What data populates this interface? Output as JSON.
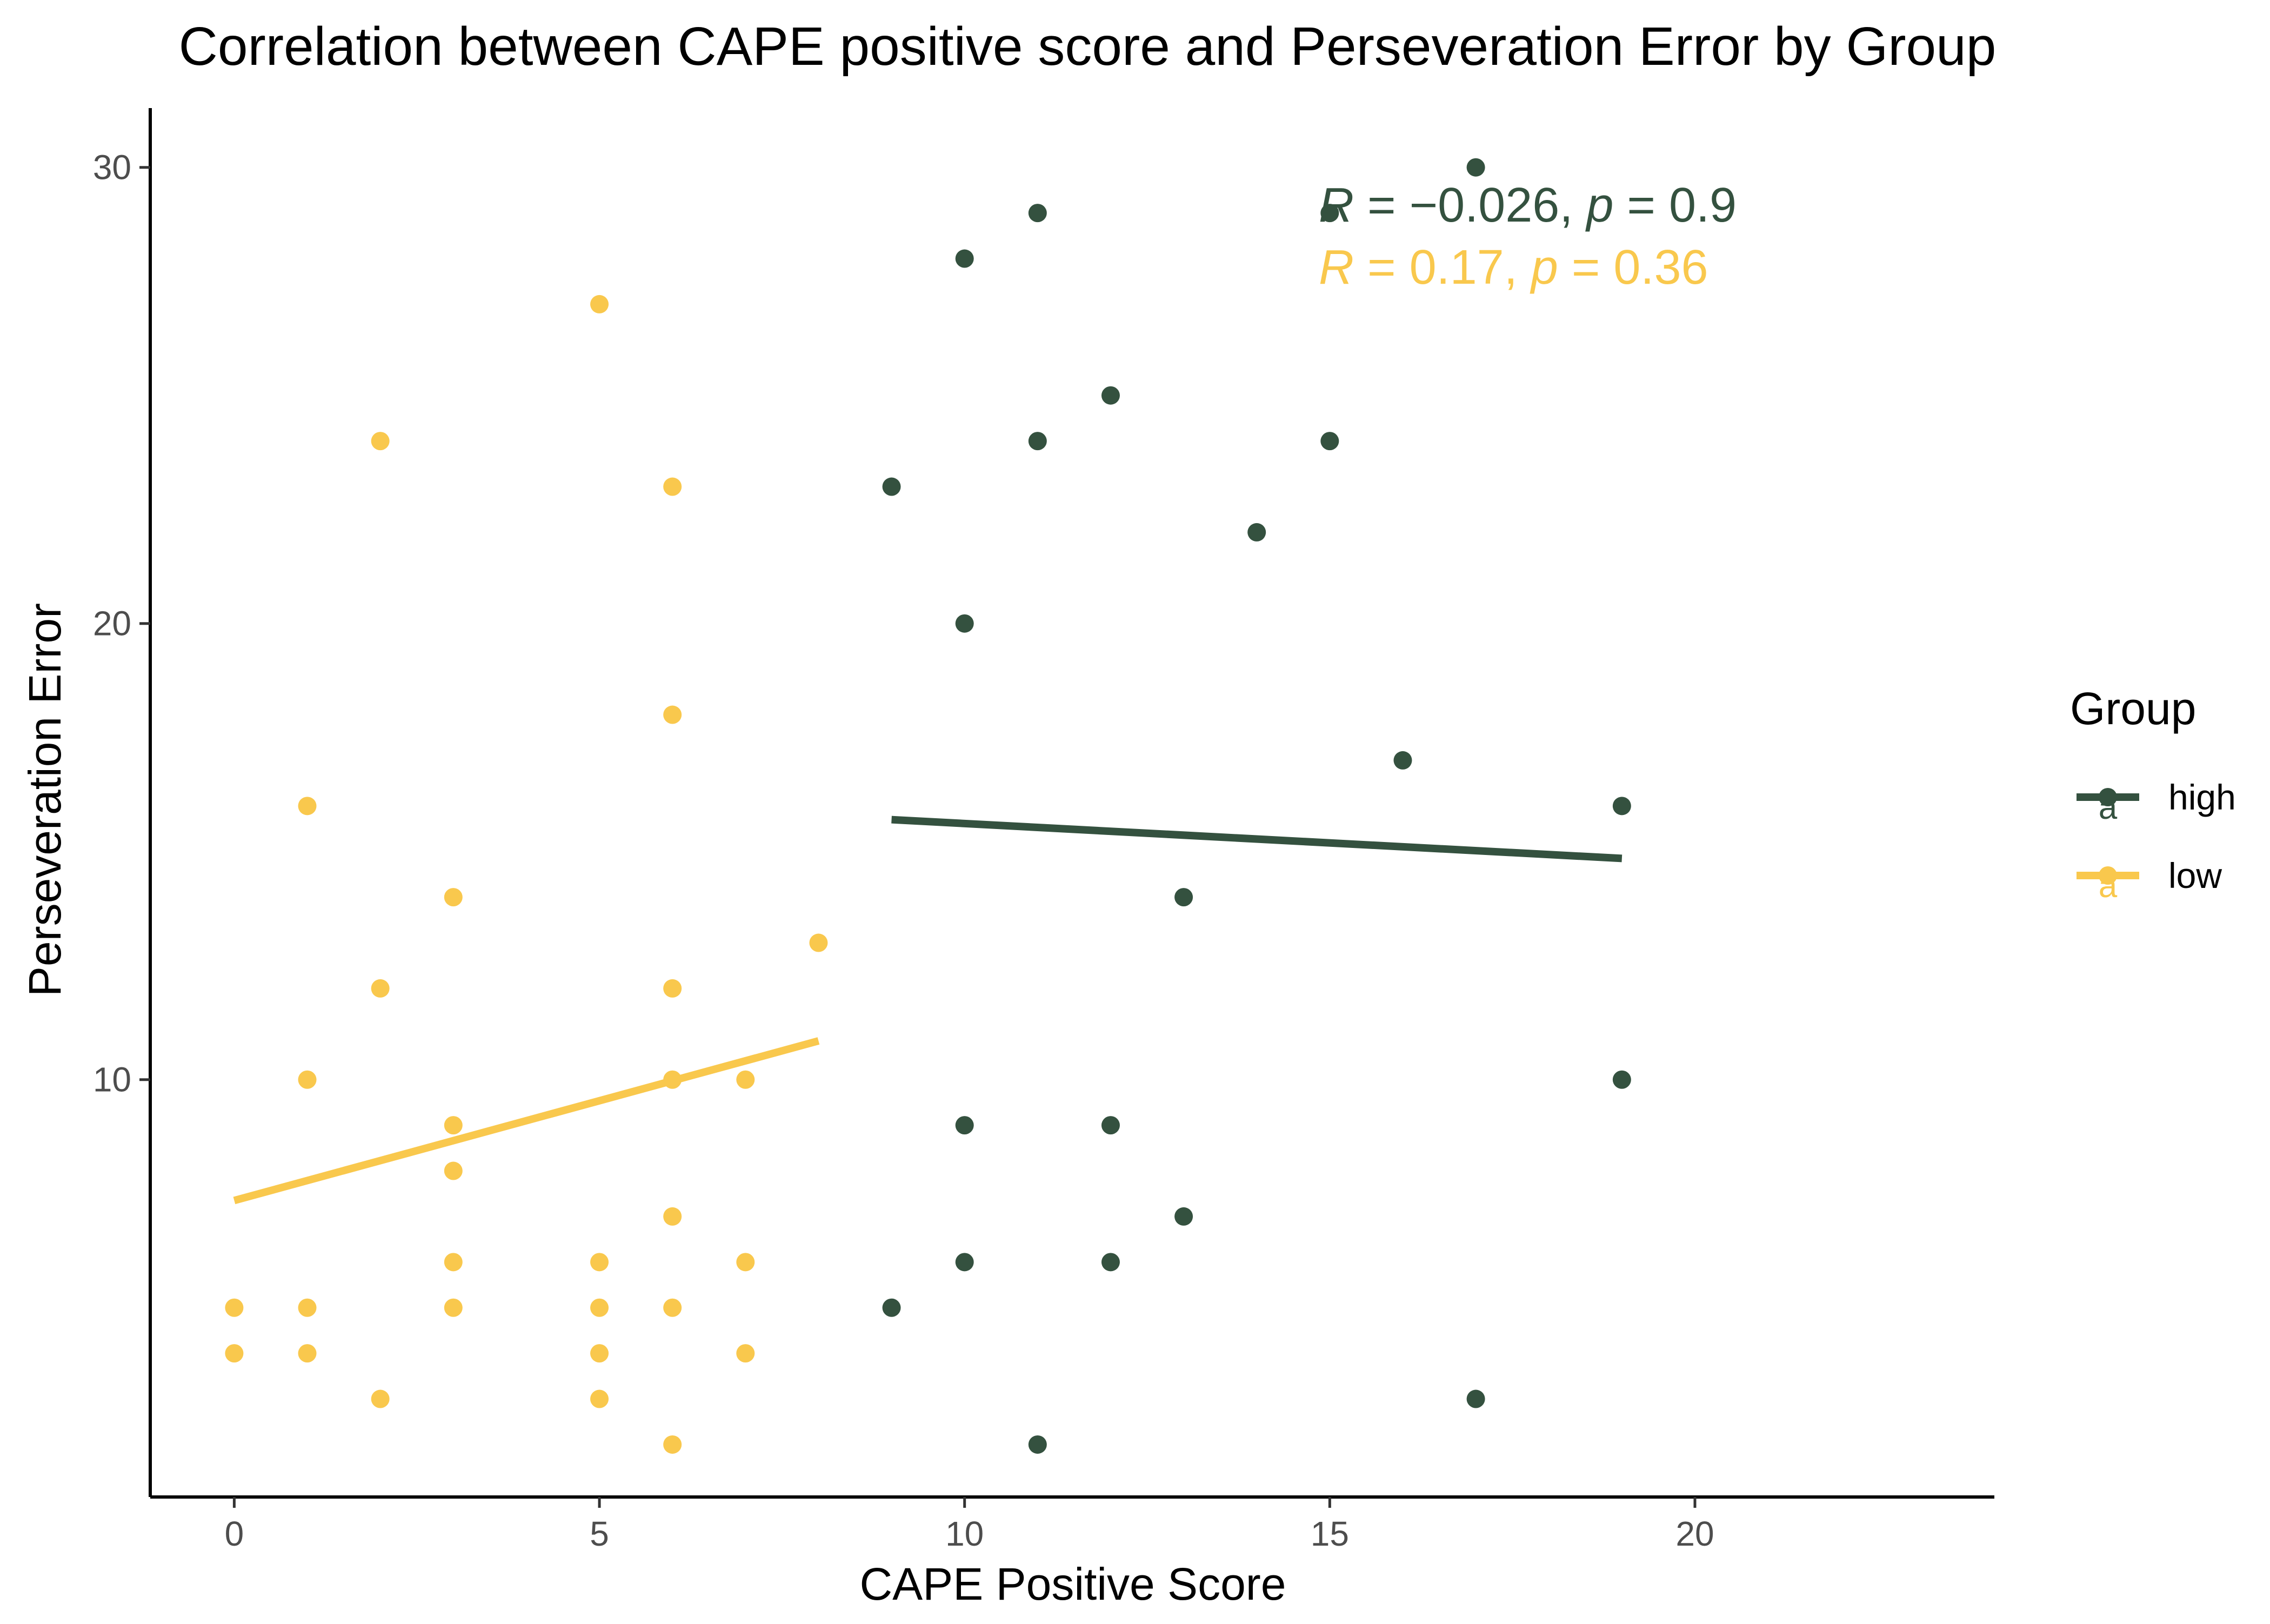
{
  "chart_data": {
    "type": "scatter",
    "title": "Correlation between CAPE positive score and Perseveration Error by Group",
    "xlabel": "CAPE Positive Score",
    "ylabel": "Perseveration Error",
    "xlim": [
      -1.15,
      24.1
    ],
    "ylim": [
      0.85,
      31.3
    ],
    "xticks": [
      "0",
      "5",
      "10",
      "15",
      "20"
    ],
    "yticks": [
      "10",
      "20",
      "30"
    ],
    "grid": false,
    "legend": {
      "title": "Group",
      "placement": "right",
      "key_glyph": "a"
    },
    "series": [
      {
        "name": "high",
        "color": "#34513f",
        "points": [
          [
            9,
            23
          ],
          [
            9,
            5
          ],
          [
            10,
            28
          ],
          [
            10,
            20
          ],
          [
            10,
            9
          ],
          [
            10,
            6
          ],
          [
            11,
            29
          ],
          [
            11,
            24
          ],
          [
            11,
            2
          ],
          [
            12,
            25
          ],
          [
            12,
            9
          ],
          [
            12,
            6
          ],
          [
            13,
            14
          ],
          [
            13,
            7
          ],
          [
            14,
            22
          ],
          [
            15,
            29
          ],
          [
            15,
            24
          ],
          [
            16,
            17
          ],
          [
            17,
            30
          ],
          [
            17,
            3
          ],
          [
            19,
            16
          ],
          [
            19,
            10
          ]
        ],
        "fit_line": {
          "x": [
            9,
            19
          ],
          "y": [
            15.7,
            14.85
          ]
        },
        "annotation": {
          "R": "R",
          "eq": " = −0.026, ",
          "p": "p",
          "peq": " = 0.9"
        }
      },
      {
        "name": "low",
        "color": "#f9c84d",
        "points": [
          [
            0,
            5
          ],
          [
            0,
            4
          ],
          [
            1,
            16
          ],
          [
            1,
            10
          ],
          [
            1,
            5
          ],
          [
            1,
            4
          ],
          [
            2,
            24
          ],
          [
            2,
            12
          ],
          [
            2,
            3
          ],
          [
            3,
            14
          ],
          [
            3,
            9
          ],
          [
            3,
            8
          ],
          [
            3,
            6
          ],
          [
            3,
            5
          ],
          [
            5,
            27
          ],
          [
            5,
            6
          ],
          [
            5,
            5
          ],
          [
            5,
            4
          ],
          [
            5,
            3
          ],
          [
            6,
            23
          ],
          [
            6,
            18
          ],
          [
            6,
            12
          ],
          [
            6,
            10
          ],
          [
            6,
            7
          ],
          [
            6,
            5
          ],
          [
            6,
            2
          ],
          [
            7,
            10
          ],
          [
            7,
            6
          ],
          [
            7,
            4
          ],
          [
            8,
            13
          ]
        ],
        "fit_line": {
          "x": [
            0,
            8
          ],
          "y": [
            7.35,
            10.85
          ]
        },
        "annotation": {
          "R": "R",
          "eq": " = 0.17, ",
          "p": "p",
          "peq": " = 0.36"
        }
      }
    ]
  }
}
